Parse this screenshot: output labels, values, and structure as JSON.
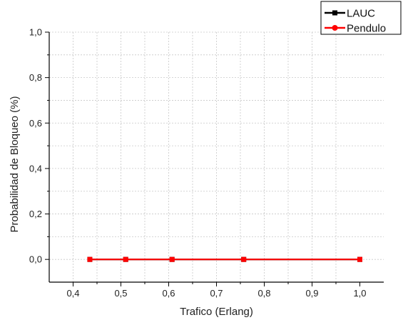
{
  "chart_data": {
    "type": "line",
    "xlabel": "Trafico (Erlang)",
    "ylabel": "Probabilidad de Bloqueo (%)",
    "xlim": [
      0.35,
      1.05
    ],
    "ylim": [
      -0.1,
      1.0
    ],
    "x_ticks": [
      "0,4",
      "0,5",
      "0,6",
      "0,7",
      "0,8",
      "0,9",
      "1,0"
    ],
    "x_tick_values": [
      0.4,
      0.5,
      0.6,
      0.7,
      0.8,
      0.9,
      1.0
    ],
    "y_ticks": [
      "0,0",
      "0,2",
      "0,4",
      "0,6",
      "0,8",
      "1,0"
    ],
    "y_tick_values": [
      0.0,
      0.2,
      0.4,
      0.6,
      0.8,
      1.0
    ],
    "grid": true,
    "legend_position": "top-right",
    "series": [
      {
        "name": "LAUC",
        "color": "#000000",
        "marker": "square",
        "x": [
          0.435,
          0.51,
          0.607,
          0.757,
          1.0
        ],
        "y": [
          0,
          0,
          0,
          0,
          0
        ]
      },
      {
        "name": "Pendulo",
        "color": "#ff0000",
        "marker": "circle",
        "x": [
          0.435,
          0.51,
          0.607,
          0.757,
          1.0
        ],
        "y": [
          0,
          0,
          0,
          0,
          0
        ]
      }
    ]
  }
}
